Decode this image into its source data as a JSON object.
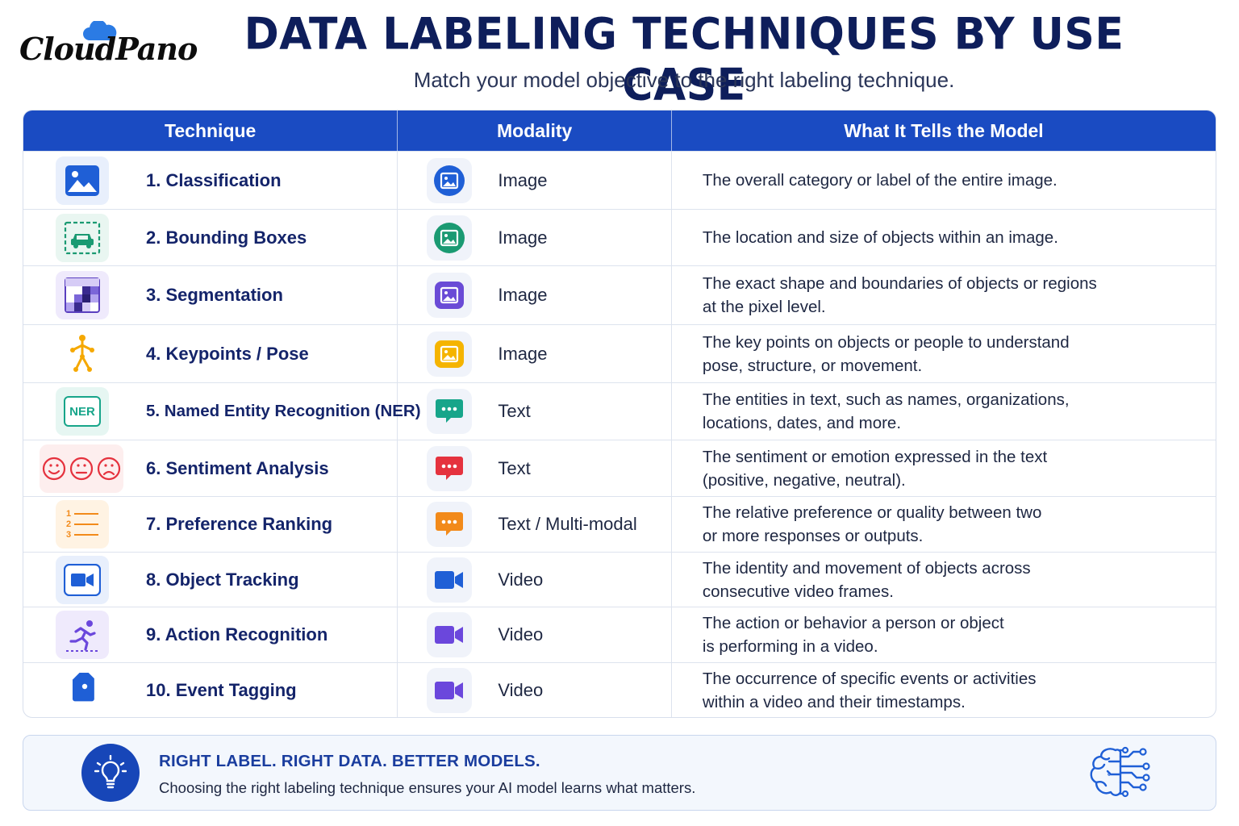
{
  "brand": {
    "logo_text": "CloudPano"
  },
  "header": {
    "title": "DATA LABELING TECHNIQUES BY USE CASE",
    "subtitle": "Match your model objective to the right labeling technique."
  },
  "table": {
    "columns": [
      "Technique",
      "Modality",
      "What It Tells the Model"
    ],
    "rows": [
      {
        "technique": "1. Classification",
        "technique_icon": "image-icon",
        "modality": "Image",
        "modality_icon": "image-circle-icon",
        "description_lines": [
          "The overall category or label of the entire image."
        ]
      },
      {
        "technique": "2. Bounding Boxes",
        "technique_icon": "car-bounding-box-icon",
        "modality": "Image",
        "modality_icon": "image-circle-icon",
        "description_lines": [
          "The location and size of objects within an image."
        ]
      },
      {
        "technique": "3. Segmentation",
        "technique_icon": "pixel-grid-icon",
        "modality": "Image",
        "modality_icon": "image-icon",
        "description_lines": [
          "The exact shape and boundaries of objects or regions",
          "at the pixel level."
        ]
      },
      {
        "technique": "4. Keypoints / Pose",
        "technique_icon": "stick-figure-icon",
        "modality": "Image",
        "modality_icon": "image-icon",
        "description_lines": [
          "The key points on objects or people to understand",
          "pose, structure, or movement."
        ]
      },
      {
        "technique": "5. Named Entity Recognition (NER)",
        "technique_icon": "ner-badge-icon",
        "technique_badge": "NER",
        "modality": "Text",
        "modality_icon": "chat-bubble-icon",
        "description_lines": [
          "The entities in text, such as names, organizations,",
          "locations, dates, and more."
        ]
      },
      {
        "technique": "6. Sentiment Analysis",
        "technique_icon": "emoji-faces-icon",
        "modality": "Text",
        "modality_icon": "chat-bubble-icon",
        "description_lines": [
          "The sentiment or emotion expressed in the text",
          "(positive, negative, neutral)."
        ]
      },
      {
        "technique": "7. Preference Ranking",
        "technique_icon": "numbered-list-icon",
        "technique_list_numbers": [
          "1",
          "2",
          "3"
        ],
        "modality": "Text / Multi-modal",
        "modality_icon": "chat-bubble-icon",
        "description_lines": [
          "The relative preference or quality between two",
          "or more responses or outputs."
        ]
      },
      {
        "technique": "8. Object Tracking",
        "technique_icon": "video-camera-icon",
        "modality": "Video",
        "modality_icon": "video-camera-icon",
        "description_lines": [
          "The identity and movement of objects across",
          "consecutive video frames."
        ]
      },
      {
        "technique": "9. Action Recognition",
        "technique_icon": "running-person-icon",
        "modality": "Video",
        "modality_icon": "video-camera-icon",
        "description_lines": [
          "The action or behavior a person or object",
          "is performing in a video."
        ]
      },
      {
        "technique": "10. Event Tagging",
        "technique_icon": "tag-icon",
        "modality": "Video",
        "modality_icon": "video-camera-icon",
        "description_lines": [
          "The occurrence of specific events or activities",
          "within a video and their timestamps."
        ]
      }
    ]
  },
  "footer": {
    "title": "RIGHT LABEL. RIGHT DATA. BETTER MODELS.",
    "text": "Choosing the right labeling technique ensures your AI model learns what matters.",
    "left_icon": "lightbulb-icon",
    "right_icon": "brain-circuit-icon"
  },
  "colors": {
    "header_bg": "#1a4bc2",
    "title": "#0e1e5b",
    "blue": "#1f5fd6",
    "green": "#1a9a72",
    "purple": "#6a4bd6",
    "yellow": "#f5b400",
    "teal": "#17a58a",
    "red": "#e5323e",
    "orange": "#f28a1a",
    "violet": "#6b47dc"
  }
}
